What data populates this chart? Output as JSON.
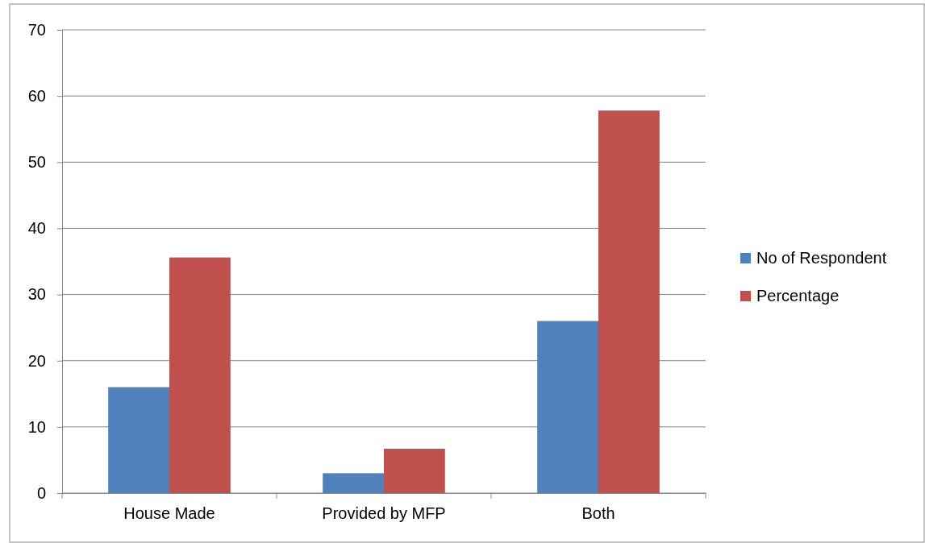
{
  "chart_data": {
    "type": "bar",
    "categories": [
      "House Made",
      "Provided by MFP",
      "Both"
    ],
    "series": [
      {
        "name": "No of Respondent",
        "color": "#4f81bd",
        "values": [
          16,
          3,
          26
        ]
      },
      {
        "name": "Percentage",
        "color": "#c0504d",
        "values": [
          35.6,
          6.7,
          57.8
        ]
      }
    ],
    "ylim": [
      0,
      70
    ],
    "yticks": [
      0,
      10,
      20,
      30,
      40,
      50,
      60,
      70
    ],
    "grid": "y",
    "legend": "right"
  }
}
